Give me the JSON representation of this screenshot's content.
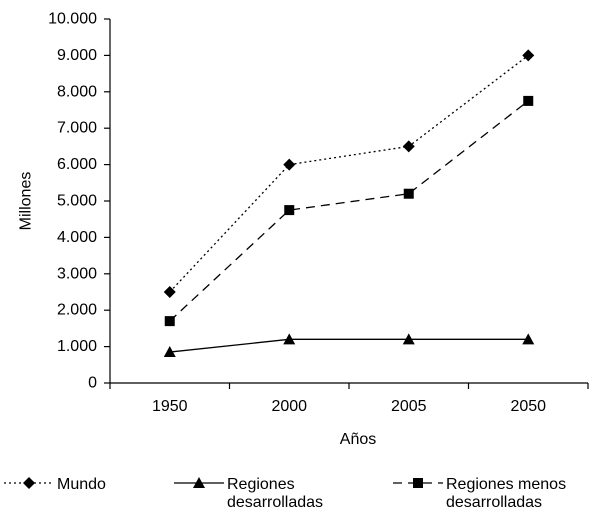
{
  "chart_data": {
    "type": "line",
    "categories": [
      "1950",
      "2000",
      "2005",
      "2050"
    ],
    "xlabel": "Años",
    "ylabel": "Millones",
    "ylim": [
      0,
      10000
    ],
    "y_ticks": [
      "0",
      "1.000",
      "2.000",
      "3.000",
      "4.000",
      "5.000",
      "6.000",
      "7.000",
      "8.000",
      "9.000",
      "10.000"
    ],
    "grid": false,
    "legend_position": "bottom",
    "series": [
      {
        "name": "Mundo",
        "values": [
          2500,
          6000,
          6500,
          9000
        ],
        "marker": "diamond",
        "line_style": "dotted",
        "legend_lines": [
          "Mundo"
        ]
      },
      {
        "name": "Regiones desarrolladas",
        "values": [
          850,
          1200,
          1200,
          1200
        ],
        "marker": "triangle",
        "line_style": "solid",
        "legend_lines": [
          "Regiones",
          "desarrolladas"
        ]
      },
      {
        "name": "Regiones menos desarrolladas",
        "values": [
          1700,
          4750,
          5200,
          7750
        ],
        "marker": "square",
        "line_style": "dashed",
        "legend_lines": [
          "Regiones menos",
          "desarrolladas"
        ]
      }
    ],
    "colors": {
      "line": "#000000",
      "marker": "#000000"
    }
  }
}
